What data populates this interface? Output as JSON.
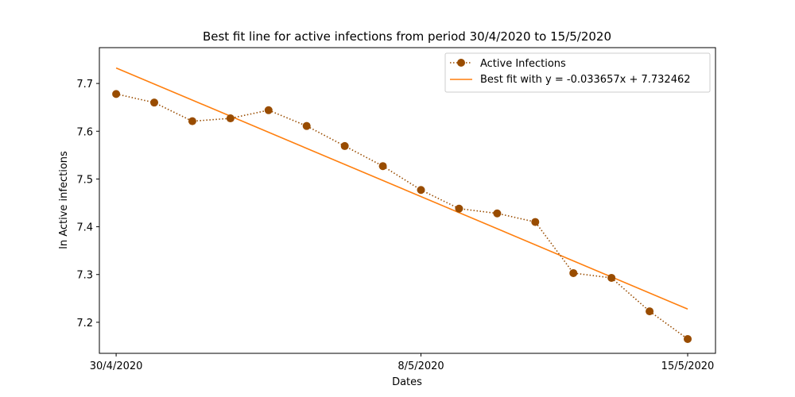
{
  "chart_data": {
    "type": "line",
    "title": "Best fit line for active infections from period 30/4/2020 to 15/5/2020",
    "xlabel": "Dates",
    "ylabel": "ln Active infections",
    "x": [
      "30/4/2020",
      "1/5/2020",
      "2/5/2020",
      "3/5/2020",
      "4/5/2020",
      "5/5/2020",
      "6/5/2020",
      "7/5/2020",
      "8/5/2020",
      "9/5/2020",
      "10/5/2020",
      "11/5/2020",
      "12/5/2020",
      "13/5/2020",
      "14/5/2020",
      "15/5/2020"
    ],
    "x_ticks": [
      "30/4/2020",
      "8/5/2020",
      "15/5/2020"
    ],
    "ylim": [
      7.135,
      7.775
    ],
    "y_ticks": [
      "7.2",
      "7.3",
      "7.4",
      "7.5",
      "7.6",
      "7.7"
    ],
    "legend_position": "top-right",
    "series": [
      {
        "name": "Active Infections",
        "color": "#994c00",
        "style": "dotted-with-markers",
        "values": [
          7.678,
          7.66,
          7.621,
          7.627,
          7.644,
          7.611,
          7.569,
          7.527,
          7.477,
          7.438,
          7.428,
          7.41,
          7.303,
          7.293,
          7.223,
          7.165
        ]
      },
      {
        "name": "Best fit with y = -0.033657x + 7.732462",
        "color": "#ff7f0e",
        "style": "solid",
        "slope": -0.033657,
        "intercept": 7.732462
      }
    ]
  }
}
